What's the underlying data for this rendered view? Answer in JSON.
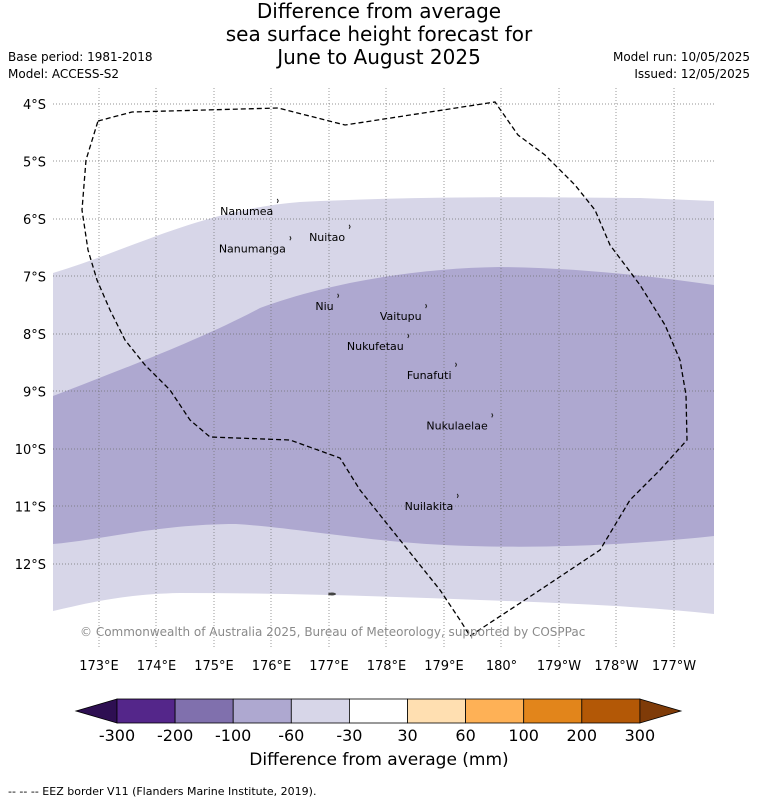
{
  "header": {
    "title_lines": [
      "Difference from average",
      "sea surface height forecast for",
      "June to August 2025"
    ],
    "base_period": "Base period: 1981-2018",
    "model": "Model: ACCESS-S2",
    "model_run": "Model run: 10/05/2025",
    "issued": "Issued: 12/05/2025"
  },
  "map": {
    "lat_labels": [
      "4°S",
      "5°S",
      "6°S",
      "7°S",
      "8°S",
      "9°S",
      "10°S",
      "11°S",
      "12°S"
    ],
    "lon_labels": [
      "173°E",
      "174°E",
      "175°E",
      "176°E",
      "177°E",
      "178°E",
      "179°E",
      "180°",
      "179°W",
      "178°W",
      "177°W"
    ],
    "islands": [
      {
        "name": "Nanumea",
        "lon": 176.1,
        "lat": -5.65
      },
      {
        "name": "Nuitao",
        "lon": 177.35,
        "lat": -6.1
      },
      {
        "name": "Nanumanga",
        "lon": 176.32,
        "lat": -6.3
      },
      {
        "name": "Niu",
        "lon": 177.15,
        "lat": -7.3
      },
      {
        "name": "Vaitupu",
        "lon": 178.68,
        "lat": -7.48
      },
      {
        "name": "Nukufetau",
        "lon": 178.37,
        "lat": -8.0
      },
      {
        "name": "Funafuti",
        "lon": 179.2,
        "lat": -8.5
      },
      {
        "name": "Nukulaelae",
        "lon": 179.83,
        "lat": -9.38
      },
      {
        "name": "Nuilakita",
        "lon": 179.23,
        "lat": -10.78
      }
    ],
    "anomaly_classes": {
      "outer_band": "-60 to -30 mm",
      "inner_band": "-100 to -60 mm"
    },
    "copyright": "© Commonwealth of Australia 2025, Bureau of Meteorology, supported by COSPPac"
  },
  "legend": {
    "ticks": [
      "-300",
      "-200",
      "-100",
      "-60",
      "-30",
      "30",
      "60",
      "100",
      "200",
      "300"
    ],
    "colors": [
      "#2e0f52",
      "#54268a",
      "#8070ad",
      "#aea8d0",
      "#d7d6e8",
      "#ffffff",
      "#ffdfb1",
      "#feb156",
      "#e2851b",
      "#b35806",
      "#7f3b08"
    ],
    "title": "Difference from average (mm)"
  },
  "footnote": "--  --  -- EEZ border V11 (Flanders Marine Institute, 2019)."
}
